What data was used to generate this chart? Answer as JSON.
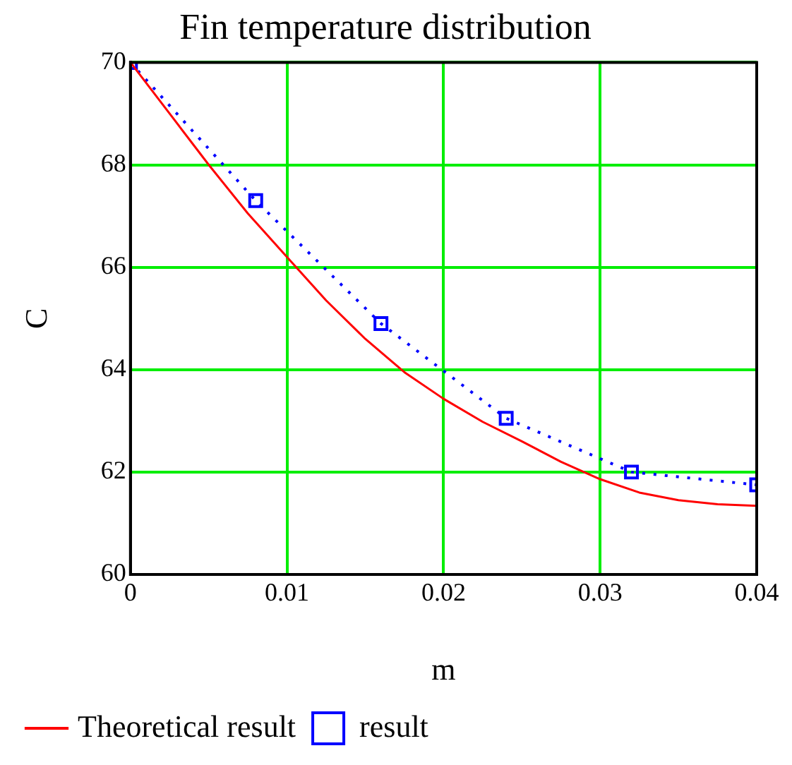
{
  "chart_data": {
    "type": "line",
    "title": "Fin temperature distribution",
    "xlabel": "m",
    "ylabel": "C",
    "xlim": [
      0,
      0.04
    ],
    "xticks": [
      0,
      0.01,
      0.02,
      0.03,
      0.04
    ],
    "ylim": [
      60,
      70
    ],
    "yticks": [
      60,
      62,
      64,
      66,
      68,
      70
    ],
    "grid": true,
    "legend": "bottom",
    "series": [
      {
        "name": "Theoretical result",
        "color": "#ff0000",
        "marker": "none",
        "line_style": "solid",
        "x": [
          0,
          0.0025,
          0.005,
          0.0075,
          0.01,
          0.0125,
          0.015,
          0.0175,
          0.02,
          0.0225,
          0.025,
          0.0275,
          0.03,
          0.0325,
          0.035,
          0.0375,
          0.04
        ],
        "values": [
          70,
          69,
          68,
          67.05,
          66.2,
          65.35,
          64.6,
          63.95,
          63.43,
          62.98,
          62.6,
          62.2,
          61.86,
          61.6,
          61.45,
          61.37,
          61.34
        ]
      },
      {
        "name": "result",
        "color": "#0000ff",
        "marker": "square",
        "line_style": "dotted",
        "x": [
          0,
          0.008,
          0.016,
          0.024,
          0.032,
          0.04
        ],
        "values": [
          70,
          67.3,
          64.9,
          63.05,
          62.0,
          61.75
        ]
      }
    ]
  }
}
